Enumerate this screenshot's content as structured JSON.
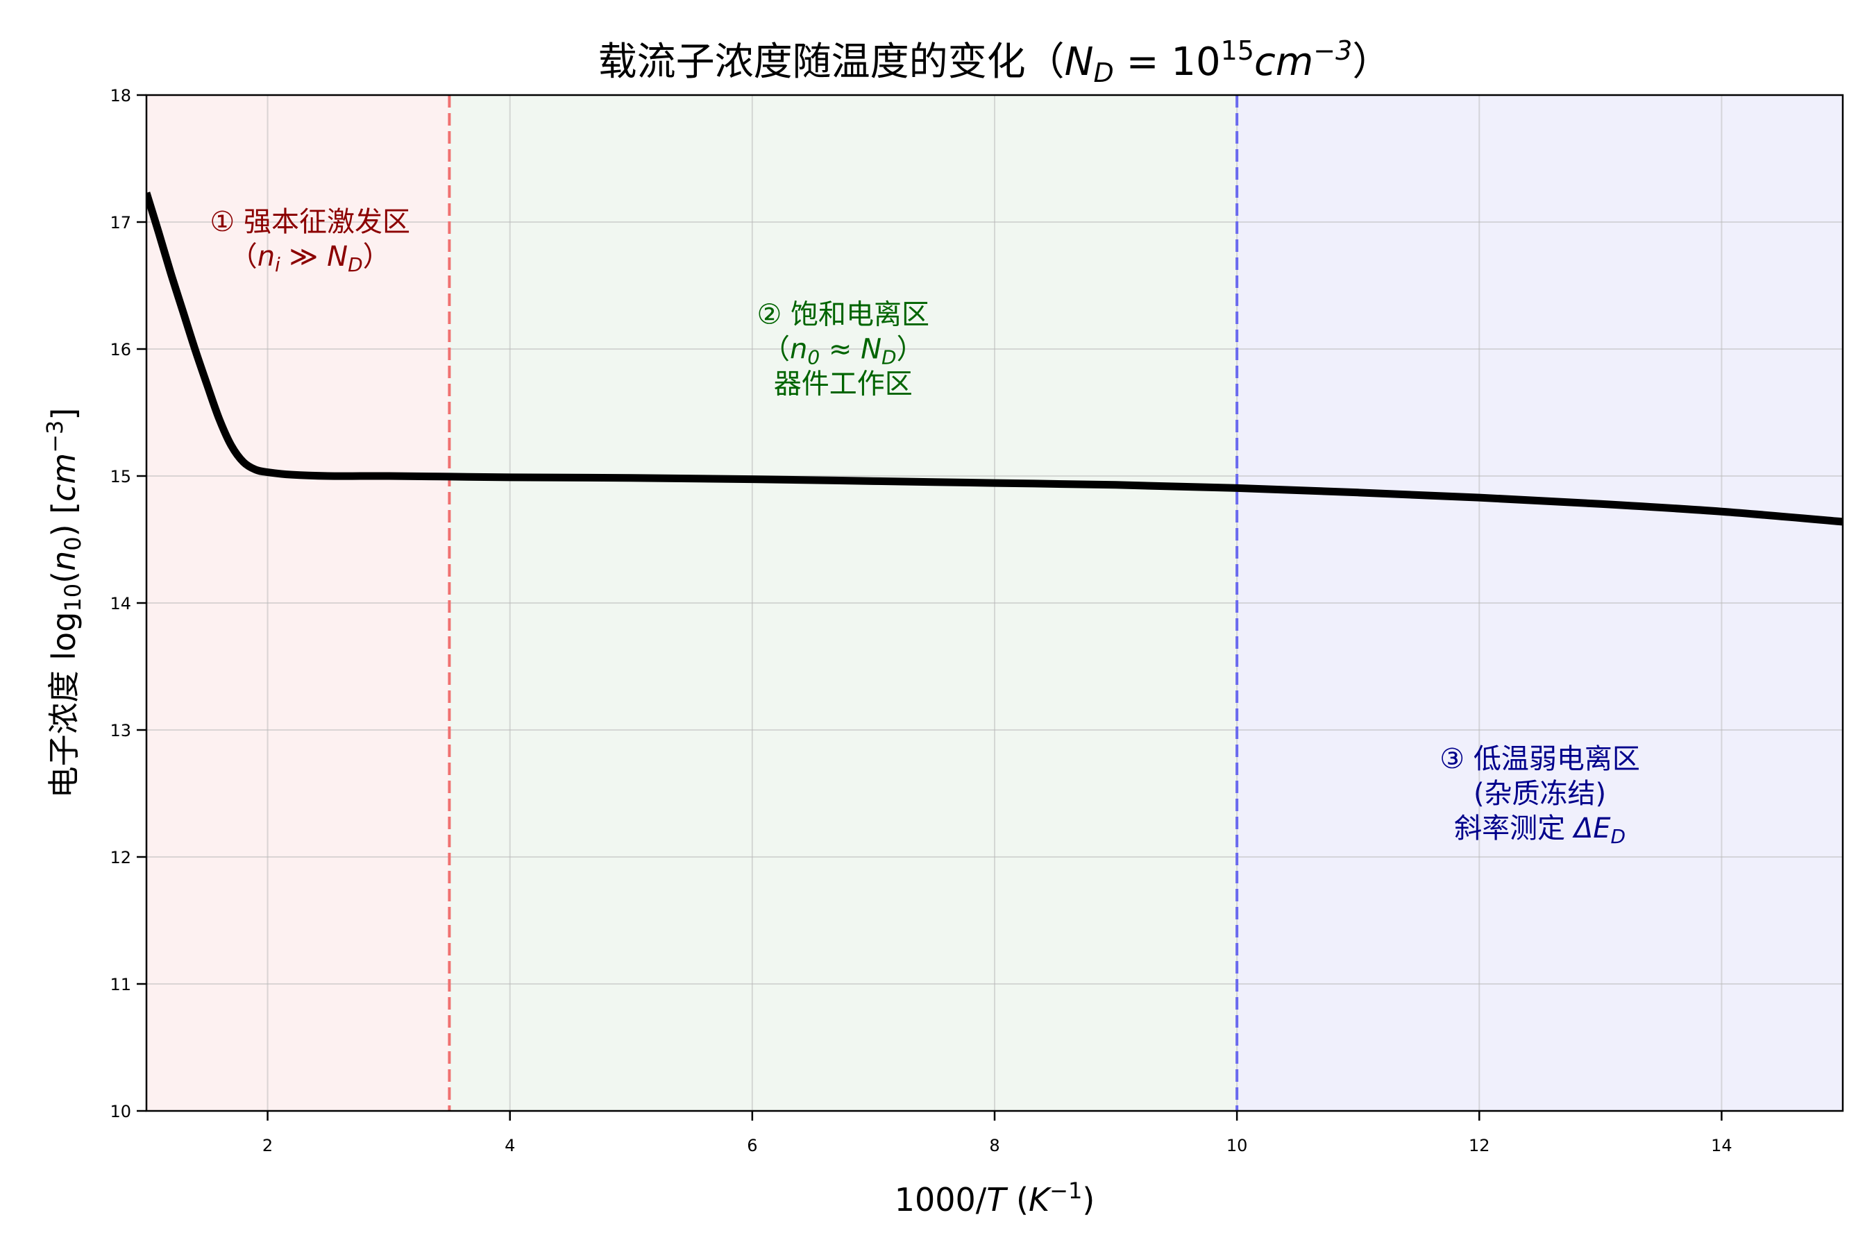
{
  "chart_data": {
    "type": "line",
    "title": "载流子浓度随温度的变化（N_D = 10^15 cm^-3）",
    "title_parts": {
      "prefix": "载流子浓度随温度的变化（",
      "var": "N",
      "var_sub": "D",
      "eq": " = 10",
      "exp": "15",
      "unit": "cm",
      "unit_exp": "−3",
      "suffix": "）"
    },
    "xlabel": "1000/T (K^-1)",
    "xlabel_parts": {
      "main": "1000/",
      "var": "T",
      "paren_open": " (",
      "unit": "K",
      "unit_exp": "−1",
      "paren_close": ")"
    },
    "ylabel": "电子浓度 log10(n0) [cm^-3]",
    "ylabel_parts": {
      "prefix": "电子浓度 log",
      "sub": "10",
      "open": "(",
      "var": "n",
      "var_sub": "0",
      "close": ") [",
      "unit": "cm",
      "unit_exp": "−3",
      "end": "]"
    },
    "xlim": [
      1,
      15
    ],
    "ylim": [
      10,
      18
    ],
    "xticks": [
      2,
      4,
      6,
      8,
      10,
      12,
      14
    ],
    "yticks": [
      10,
      11,
      12,
      13,
      14,
      15,
      16,
      17,
      18
    ],
    "grid": true,
    "series": [
      {
        "name": "log10(n0)",
        "color": "#000000",
        "x": [
          1.0,
          1.1,
          1.2,
          1.3,
          1.4,
          1.5,
          1.6,
          1.7,
          1.8,
          1.9,
          2.0,
          2.2,
          2.5,
          3.0,
          3.5,
          4.0,
          5.0,
          6.0,
          7.0,
          8.0,
          9.0,
          10.0,
          11.0,
          12.0,
          13.0,
          14.0,
          15.0
        ],
        "y": [
          17.23,
          16.92,
          16.6,
          16.3,
          16.0,
          15.72,
          15.45,
          15.24,
          15.11,
          15.05,
          15.03,
          15.01,
          15.0,
          15.0,
          14.995,
          14.99,
          14.985,
          14.975,
          14.96,
          14.945,
          14.93,
          14.905,
          14.87,
          14.83,
          14.78,
          14.72,
          14.64
        ]
      }
    ],
    "regions": [
      {
        "name": "intrinsic",
        "x_from": 1,
        "x_to": 3.5,
        "fill": "#fdf1f1"
      },
      {
        "name": "saturation",
        "x_from": 3.5,
        "x_to": 10,
        "fill": "#f1f7f1"
      },
      {
        "name": "freeze-out",
        "x_from": 10,
        "x_to": 15,
        "fill": "#f0f0fc"
      }
    ],
    "vlines": [
      {
        "x": 3.5,
        "color": "#f07070",
        "style": "dashed"
      },
      {
        "x": 10,
        "color": "#6a6aee",
        "style": "dashed"
      }
    ],
    "annotations": [
      {
        "region": "intrinsic",
        "color": "#8b0000",
        "x": 2.35,
        "y": 16.93,
        "lines": [
          {
            "text": "① 强本征激发区"
          },
          {
            "text": "（n_i ≫ N_D）",
            "math": {
              "open": "（",
              "var": "n",
              "sub": "i",
              "op": " ≫ ",
              "var2": "N",
              "sub2": "D",
              "close": "）"
            }
          }
        ]
      },
      {
        "region": "saturation",
        "color": "#006400",
        "x": 6.75,
        "y": 16.2,
        "lines": [
          {
            "text": "② 饱和电离区"
          },
          {
            "text": "（n_0 ≈ N_D）",
            "math": {
              "open": "（",
              "var": "n",
              "sub": "0",
              "op": " ≈ ",
              "var2": "N",
              "sub2": "D",
              "close": "）"
            }
          },
          {
            "text": "器件工作区"
          }
        ]
      },
      {
        "region": "freeze-out",
        "color": "#00008b",
        "x": 12.5,
        "y": 12.7,
        "lines": [
          {
            "text": "③ 低温弱电离区"
          },
          {
            "text": "(杂质冻结)"
          },
          {
            "text": "斜率测定 ΔE_D",
            "math": {
              "prefix": "斜率测定 ",
              "var": "ΔE",
              "sub": "D"
            }
          }
        ]
      }
    ]
  }
}
